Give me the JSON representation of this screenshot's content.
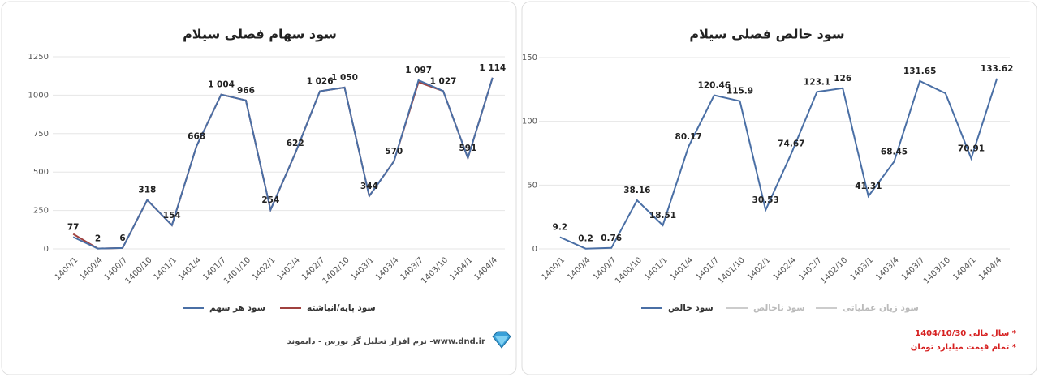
{
  "chart_data": [
    {
      "type": "line",
      "title": "سود سهام فصلی سیلام",
      "categories": [
        "1400/1",
        "1400/4",
        "1400/7",
        "1400/10",
        "1401/1",
        "1401/4",
        "1401/7",
        "1401/10",
        "1402/1",
        "1402/4",
        "1402/7",
        "1402/10",
        "1403/1",
        "1403/4",
        "1403/7",
        "1403/10",
        "1404/1",
        "1404/4"
      ],
      "series": [
        {
          "name": "سود هر سهم",
          "color": "#4a6fa5",
          "values": [
            77,
            2,
            6,
            318,
            154,
            668,
            1004,
            966,
            254,
            622,
            1026,
            1050,
            344,
            570,
            1097,
            1027,
            591,
            1114
          ],
          "value_labels": [
            "77",
            "2",
            "6",
            "318",
            "154",
            "668",
            "1 004",
            "966",
            "254",
            "622",
            "1 026",
            "1 050",
            "344",
            "570",
            "1 097",
            "1 027",
            "591",
            "1 114"
          ]
        },
        {
          "name": "سود پایه/انباشته",
          "color": "#a0413f",
          "values": [
            97,
            2,
            6,
            318,
            154,
            668,
            1004,
            966,
            254,
            622,
            1026,
            1050,
            344,
            570,
            1085,
            1027,
            591,
            1114
          ]
        }
      ],
      "ylim": [
        0,
        1250
      ],
      "yticks": [
        0,
        250,
        500,
        750,
        1000,
        1250
      ],
      "grid": true
    },
    {
      "type": "line",
      "title": "سود خالص فصلی سیلام",
      "categories": [
        "1400/1",
        "1400/4",
        "1400/7",
        "1400/10",
        "1401/1",
        "1401/4",
        "1401/7",
        "1401/10",
        "1402/1",
        "1402/4",
        "1402/7",
        "1402/10",
        "1403/1",
        "1403/4",
        "1403/7",
        "1403/10",
        "1404/1",
        "1404/4"
      ],
      "series": [
        {
          "name": "سود خالص",
          "color": "#4a6fa5",
          "values": [
            9.2,
            0.2,
            0.76,
            38.16,
            18.51,
            80.17,
            120.46,
            115.9,
            30.53,
            74.67,
            123.1,
            126,
            41.31,
            68.45,
            131.65,
            122,
            70.91,
            133.62
          ],
          "value_labels": [
            "9.2",
            "0.2",
            "0.76",
            "38.16",
            "18.51",
            "80.17",
            "120.46",
            "115.9",
            "30.53",
            "74.67",
            "123.1",
            "126",
            "41.31",
            "68.45",
            "131.65",
            null,
            "70.91",
            "133.62"
          ]
        }
      ],
      "hidden_series": [
        {
          "name": "سود ناخالص",
          "color": "#cccccc"
        },
        {
          "name": "سود زیان عملیاتی",
          "color": "#cccccc"
        }
      ],
      "ylim": [
        0,
        150
      ],
      "yticks": [
        0,
        50,
        100,
        150
      ],
      "grid": true
    }
  ],
  "footer": {
    "credit": "نرم افزار تحلیل گر بورس - دایموند -www.dnd.ir",
    "notes": [
      "* سال مالی 1404/10/30",
      "* تمام قیمت میلیارد تومان"
    ]
  }
}
